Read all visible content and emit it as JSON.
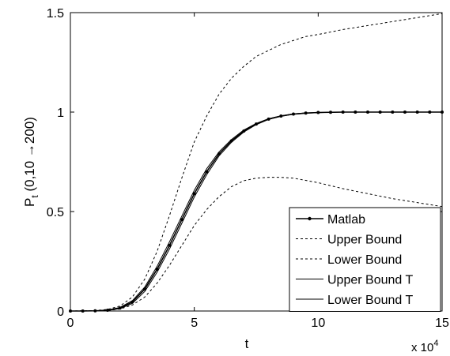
{
  "chart_data": {
    "type": "line",
    "xlabel": "t",
    "ylabel": {
      "main": "P",
      "subscript": "t",
      "rest": " (0,10 →200)"
    },
    "x_exponent_label": {
      "base": "x 10",
      "exponent": "4"
    },
    "xlim": [
      0,
      15
    ],
    "ylim": [
      0,
      1.5
    ],
    "x_ticks": [
      0,
      5,
      10,
      15
    ],
    "x_tick_labels": [
      "0",
      "5",
      "10",
      "15"
    ],
    "y_ticks": [
      0,
      0.5,
      1,
      1.5
    ],
    "y_tick_labels": [
      "0",
      "0.5",
      "1",
      "1.5"
    ],
    "grid": false,
    "legend_position": "bottom-right",
    "series": [
      {
        "name": "Matlab",
        "style": "solid-dots",
        "x": [
          0,
          0.5,
          1,
          1.5,
          2,
          2.5,
          3,
          3.5,
          4,
          4.5,
          5,
          5.5,
          6,
          6.5,
          7,
          7.5,
          8,
          8.5,
          9,
          9.5,
          10,
          10.5,
          11,
          11.5,
          12,
          12.5,
          13,
          13.5,
          14,
          14.5,
          15
        ],
        "y": [
          0,
          0,
          0.001,
          0.004,
          0.015,
          0.045,
          0.11,
          0.21,
          0.33,
          0.46,
          0.59,
          0.7,
          0.79,
          0.855,
          0.905,
          0.94,
          0.965,
          0.98,
          0.99,
          0.995,
          0.998,
          0.999,
          1.0,
          1.0,
          1.0,
          1.0,
          1.0,
          1.0,
          1.0,
          1.0,
          1.0
        ]
      },
      {
        "name": "Upper Bound",
        "style": "dashed",
        "x": [
          0,
          1,
          1.5,
          2,
          2.5,
          3,
          3.5,
          4,
          4.5,
          5,
          5.5,
          6,
          6.5,
          7,
          7.5,
          8,
          8.5,
          9,
          9.5,
          10,
          11,
          12,
          13,
          14,
          15
        ],
        "y": [
          0,
          0.002,
          0.008,
          0.025,
          0.07,
          0.16,
          0.3,
          0.48,
          0.67,
          0.85,
          0.98,
          1.09,
          1.17,
          1.23,
          1.28,
          1.31,
          1.34,
          1.36,
          1.38,
          1.39,
          1.415,
          1.435,
          1.455,
          1.475,
          1.495
        ]
      },
      {
        "name": "Lower Bound",
        "style": "dashed",
        "x": [
          0,
          1,
          1.5,
          2,
          2.5,
          3,
          3.5,
          4,
          4.5,
          5,
          5.5,
          6,
          6.5,
          7,
          7.5,
          8,
          8.5,
          9,
          10,
          11,
          12,
          13,
          14,
          15
        ],
        "y": [
          0,
          0.001,
          0.003,
          0.01,
          0.03,
          0.07,
          0.14,
          0.23,
          0.33,
          0.43,
          0.51,
          0.575,
          0.625,
          0.655,
          0.668,
          0.672,
          0.672,
          0.668,
          0.645,
          0.615,
          0.59,
          0.565,
          0.545,
          0.525
        ]
      },
      {
        "name": "Upper Bound T",
        "style": "solid",
        "x": [
          0,
          0.5,
          1,
          1.5,
          2,
          2.5,
          3,
          3.5,
          4,
          4.5,
          5,
          5.5,
          6,
          6.5,
          7,
          7.5,
          8,
          8.5,
          9,
          9.5,
          10,
          10.5,
          11,
          12,
          13,
          14,
          15
        ],
        "y": [
          0,
          0,
          0.001,
          0.005,
          0.018,
          0.052,
          0.12,
          0.225,
          0.348,
          0.478,
          0.607,
          0.715,
          0.8,
          0.862,
          0.91,
          0.943,
          0.967,
          0.981,
          0.991,
          0.996,
          0.998,
          0.999,
          1.0,
          1.0,
          1.0,
          1.0,
          1.0
        ]
      },
      {
        "name": "Lower Bound T",
        "style": "solid",
        "x": [
          0,
          0.5,
          1,
          1.5,
          2,
          2.5,
          3,
          3.5,
          4,
          4.5,
          5,
          5.5,
          6,
          6.5,
          7,
          7.5,
          8,
          8.5,
          9,
          9.5,
          10,
          10.5,
          11,
          12,
          13,
          14,
          15
        ],
        "y": [
          0,
          0,
          0.0008,
          0.003,
          0.012,
          0.038,
          0.098,
          0.195,
          0.312,
          0.442,
          0.573,
          0.685,
          0.78,
          0.848,
          0.9,
          0.937,
          0.963,
          0.979,
          0.989,
          0.994,
          0.997,
          0.999,
          1.0,
          1.0,
          1.0,
          1.0,
          1.0
        ]
      }
    ]
  }
}
